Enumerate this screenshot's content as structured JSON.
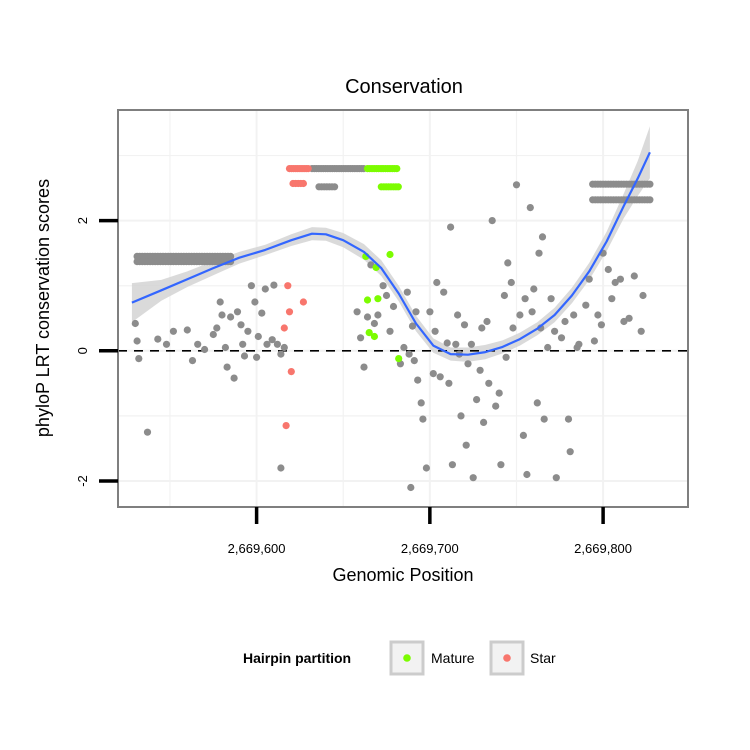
{
  "chart_data": {
    "type": "scatter",
    "title": "Conservation",
    "xlabel": "Genomic Position",
    "ylabel": "phyloP LRT conservation scores",
    "xlim": [
      2669520,
      2669849
    ],
    "ylim": [
      -2.4,
      3.7
    ],
    "x_ticks": [
      {
        "value": 2669600,
        "label": "2,669,600"
      },
      {
        "value": 2669700,
        "label": "2,669,700"
      },
      {
        "value": 2669800,
        "label": "2,669,800"
      }
    ],
    "y_ticks": [
      {
        "value": -2,
        "label": "-2"
      },
      {
        "value": 0,
        "label": "0"
      },
      {
        "value": 2,
        "label": "2"
      }
    ],
    "reference_line_y": 0,
    "grid": true,
    "legend": {
      "title": "Hairpin partition",
      "placement": "bottom",
      "entries": [
        {
          "label": "Mature",
          "color": "#7CFC00"
        },
        {
          "label": "Star",
          "color": "#F8766D"
        }
      ]
    },
    "colors": {
      "background_points": "#8c8c8c",
      "mature": "#7CFC00",
      "star": "#F8766D",
      "smooth_line": "#3366FF",
      "confidence_band": "#d3d3d3"
    },
    "smooth": {
      "x": [
        2669528,
        2669545,
        2669560,
        2669575,
        2669590,
        2669605,
        2669620,
        2669632,
        2669640,
        2669650,
        2669662,
        2669672,
        2669682,
        2669692,
        2669702,
        2669712,
        2669722,
        2669732,
        2669742,
        2669752,
        2669762,
        2669772,
        2669782,
        2669792,
        2669802,
        2669812,
        2669820,
        2669827
      ],
      "y": [
        0.74,
        0.93,
        1.1,
        1.27,
        1.43,
        1.55,
        1.7,
        1.8,
        1.79,
        1.7,
        1.52,
        1.27,
        0.88,
        0.42,
        0.08,
        -0.05,
        -0.06,
        -0.02,
        0.06,
        0.18,
        0.34,
        0.55,
        0.85,
        1.22,
        1.68,
        2.23,
        2.65,
        3.05
      ],
      "lower": [
        0.44,
        0.77,
        0.98,
        1.16,
        1.34,
        1.47,
        1.61,
        1.7,
        1.69,
        1.59,
        1.4,
        1.15,
        0.76,
        0.3,
        -0.03,
        -0.15,
        -0.17,
        -0.13,
        -0.04,
        0.08,
        0.24,
        0.44,
        0.73,
        1.09,
        1.53,
        2.04,
        2.38,
        2.65
      ],
      "upper": [
        1.04,
        1.09,
        1.22,
        1.38,
        1.52,
        1.63,
        1.79,
        1.9,
        1.89,
        1.81,
        1.64,
        1.39,
        1.0,
        0.54,
        0.19,
        0.05,
        0.05,
        0.09,
        0.16,
        0.28,
        0.44,
        0.66,
        0.97,
        1.35,
        1.83,
        2.42,
        2.92,
        3.45
      ]
    },
    "series": [
      {
        "group": "other",
        "color": "#8c8c8c",
        "points": [
          [
            2669530,
            0.42
          ],
          [
            2669531,
            0.15
          ],
          [
            2669532,
            -0.12
          ],
          [
            2669537,
            -1.25
          ],
          [
            2669543,
            0.18
          ],
          [
            2669548,
            0.1
          ],
          [
            2669552,
            0.3
          ],
          [
            2669560,
            0.32
          ],
          [
            2669563,
            -0.15
          ],
          [
            2669566,
            0.1
          ],
          [
            2669570,
            0.02
          ],
          [
            2669575,
            0.25
          ],
          [
            2669577,
            0.35
          ],
          [
            2669579,
            0.75
          ],
          [
            2669580,
            0.55
          ],
          [
            2669582,
            0.05
          ],
          [
            2669583,
            -0.25
          ],
          [
            2669585,
            0.52
          ],
          [
            2669587,
            -0.42
          ],
          [
            2669589,
            0.6
          ],
          [
            2669591,
            0.4
          ],
          [
            2669592,
            0.1
          ],
          [
            2669593,
            -0.08
          ],
          [
            2669595,
            0.3
          ],
          [
            2669597,
            1.0
          ],
          [
            2669599,
            0.75
          ],
          [
            2669600,
            -0.1
          ],
          [
            2669601,
            0.22
          ],
          [
            2669603,
            0.58
          ],
          [
            2669605,
            0.95
          ],
          [
            2669606,
            0.1
          ],
          [
            2669609,
            0.17
          ],
          [
            2669610,
            1.01
          ],
          [
            2669612,
            0.1
          ],
          [
            2669614,
            -0.05
          ],
          [
            2669614,
            -1.8
          ],
          [
            2669616,
            0.05
          ],
          [
            2669658,
            0.6
          ],
          [
            2669660,
            0.2
          ],
          [
            2669662,
            -0.25
          ],
          [
            2669664,
            0.52
          ],
          [
            2669666,
            1.32
          ],
          [
            2669668,
            0.42
          ],
          [
            2669670,
            0.55
          ],
          [
            2669673,
            1.0
          ],
          [
            2669675,
            0.85
          ],
          [
            2669677,
            0.3
          ],
          [
            2669679,
            0.68
          ],
          [
            2669683,
            -0.2
          ],
          [
            2669685,
            0.05
          ],
          [
            2669687,
            0.9
          ],
          [
            2669688,
            -0.05
          ],
          [
            2669689,
            -2.1
          ],
          [
            2669690,
            0.38
          ],
          [
            2669691,
            -0.15
          ],
          [
            2669692,
            0.6
          ],
          [
            2669693,
            -0.45
          ],
          [
            2669695,
            -0.8
          ],
          [
            2669696,
            -1.05
          ],
          [
            2669698,
            -1.8
          ],
          [
            2669700,
            0.6
          ],
          [
            2669702,
            -0.35
          ],
          [
            2669703,
            0.3
          ],
          [
            2669704,
            1.05
          ],
          [
            2669706,
            -0.4
          ],
          [
            2669708,
            0.9
          ],
          [
            2669710,
            0.12
          ],
          [
            2669711,
            -0.5
          ],
          [
            2669712,
            1.9
          ],
          [
            2669713,
            -1.75
          ],
          [
            2669715,
            0.1
          ],
          [
            2669716,
            0.55
          ],
          [
            2669717,
            -0.05
          ],
          [
            2669718,
            -1.0
          ],
          [
            2669720,
            0.4
          ],
          [
            2669721,
            -1.45
          ],
          [
            2669722,
            -0.2
          ],
          [
            2669724,
            0.1
          ],
          [
            2669725,
            -1.95
          ],
          [
            2669727,
            -0.75
          ],
          [
            2669729,
            -0.3
          ],
          [
            2669730,
            0.35
          ],
          [
            2669731,
            -1.1
          ],
          [
            2669733,
            0.45
          ],
          [
            2669734,
            -0.5
          ],
          [
            2669736,
            2.0
          ],
          [
            2669738,
            -0.85
          ],
          [
            2669740,
            -0.65
          ],
          [
            2669741,
            -1.75
          ],
          [
            2669743,
            0.85
          ],
          [
            2669744,
            -0.1
          ],
          [
            2669745,
            1.35
          ],
          [
            2669747,
            1.05
          ],
          [
            2669748,
            0.35
          ],
          [
            2669750,
            2.55
          ],
          [
            2669752,
            0.55
          ],
          [
            2669754,
            -1.3
          ],
          [
            2669755,
            0.8
          ],
          [
            2669756,
            -1.9
          ],
          [
            2669758,
            2.2
          ],
          [
            2669759,
            0.6
          ],
          [
            2669760,
            0.95
          ],
          [
            2669762,
            -0.8
          ],
          [
            2669763,
            1.5
          ],
          [
            2669764,
            0.35
          ],
          [
            2669765,
            1.75
          ],
          [
            2669766,
            -1.05
          ],
          [
            2669768,
            0.05
          ],
          [
            2669770,
            0.8
          ],
          [
            2669772,
            0.3
          ],
          [
            2669773,
            -1.95
          ],
          [
            2669776,
            0.2
          ],
          [
            2669778,
            0.45
          ],
          [
            2669780,
            -1.05
          ],
          [
            2669781,
            -1.55
          ],
          [
            2669783,
            0.55
          ],
          [
            2669785,
            0.05
          ],
          [
            2669786,
            0.1
          ],
          [
            2669790,
            0.7
          ],
          [
            2669792,
            1.1
          ],
          [
            2669795,
            0.15
          ],
          [
            2669797,
            0.55
          ],
          [
            2669799,
            0.4
          ],
          [
            2669800,
            1.5
          ],
          [
            2669803,
            1.25
          ],
          [
            2669805,
            0.8
          ],
          [
            2669807,
            1.05
          ],
          [
            2669810,
            1.1
          ],
          [
            2669812,
            0.45
          ],
          [
            2669815,
            0.5
          ],
          [
            2669818,
            1.15
          ],
          [
            2669822,
            0.3
          ],
          [
            2669823,
            0.85
          ]
        ],
        "bands": [
          {
            "y": 1.45,
            "x_from": 2669531,
            "x_to": 2669585,
            "step": 1.5
          },
          {
            "y": 1.37,
            "x_from": 2669531,
            "x_to": 2669585,
            "step": 1.5
          },
          {
            "y": 2.8,
            "x_from": 2669632,
            "x_to": 2669662,
            "step": 1.3
          },
          {
            "y": 2.52,
            "x_from": 2669636,
            "x_to": 2669646,
            "step": 1.5
          },
          {
            "y": 2.56,
            "x_from": 2669794,
            "x_to": 2669828,
            "step": 1.5
          },
          {
            "y": 2.32,
            "x_from": 2669794,
            "x_to": 2669828,
            "step": 1.5
          }
        ]
      },
      {
        "group": "Mature",
        "color": "#7CFC00",
        "points": [
          [
            2669663,
            1.45
          ],
          [
            2669664,
            0.78
          ],
          [
            2669665,
            0.28
          ],
          [
            2669668,
            0.22
          ],
          [
            2669669,
            1.28
          ],
          [
            2669670,
            0.8
          ],
          [
            2669677,
            1.48
          ],
          [
            2669682,
            -0.12
          ]
        ],
        "bands": [
          {
            "y": 2.8,
            "x_from": 2669664,
            "x_to": 2669682,
            "step": 1.3
          },
          {
            "y": 2.52,
            "x_from": 2669672,
            "x_to": 2669682,
            "step": 1.4
          }
        ]
      },
      {
        "group": "Star",
        "color": "#F8766D",
        "points": [
          [
            2669616,
            0.35
          ],
          [
            2669618,
            1.0
          ],
          [
            2669619,
            0.6
          ],
          [
            2669620,
            -0.32
          ],
          [
            2669617,
            -1.15
          ],
          [
            2669627,
            0.75
          ]
        ],
        "bands": [
          {
            "y": 2.8,
            "x_from": 2669619,
            "x_to": 2669631,
            "step": 1.2
          },
          {
            "y": 2.57,
            "x_from": 2669621,
            "x_to": 2669627,
            "step": 1.5
          }
        ]
      }
    ]
  }
}
